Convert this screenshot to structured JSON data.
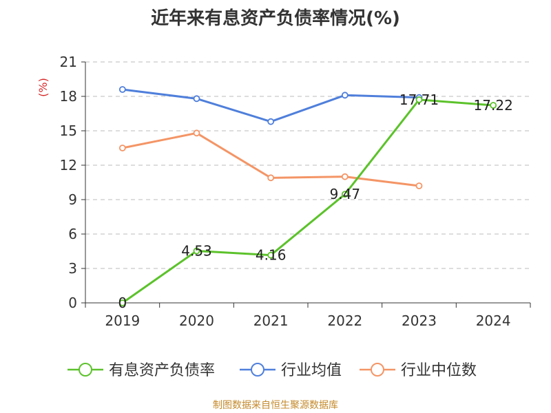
{
  "title": "近年来有息资产负债率情况(%)",
  "source": "制图数据来自恒生聚源数据库",
  "chart_data": {
    "type": "line",
    "title": "近年来有息资产负债率情况(%)",
    "ylabel": "(%)",
    "xlabel": "",
    "categories": [
      "2019",
      "2020",
      "2021",
      "2022",
      "2023",
      "2024"
    ],
    "ylim": [
      0,
      21
    ],
    "yticks": [
      0,
      3,
      6,
      9,
      12,
      15,
      18,
      21
    ],
    "grid": true,
    "legend_position": "bottom",
    "series": [
      {
        "name": "有息资产负债率",
        "color": "#5cc22b",
        "values": [
          0,
          4.53,
          4.16,
          9.47,
          17.71,
          17.22
        ],
        "labels": [
          "0",
          "4.53",
          "4.16",
          "9.47",
          "17.71",
          "17.22"
        ]
      },
      {
        "name": "行业均值",
        "color": "#4f7fdb",
        "values": [
          18.6,
          17.8,
          15.8,
          18.1,
          17.9,
          null
        ]
      },
      {
        "name": "行业中位数",
        "color": "#f49566",
        "values": [
          13.5,
          14.8,
          10.9,
          11.0,
          10.2,
          null
        ]
      }
    ]
  }
}
